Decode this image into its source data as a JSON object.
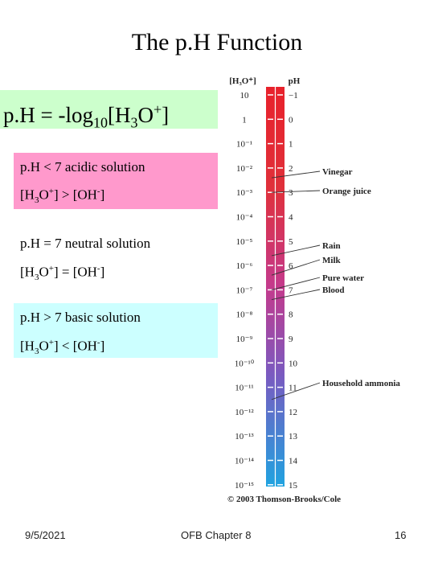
{
  "slide": {
    "title": "The p.H Function",
    "formula": {
      "prefix": "p.H = -log",
      "base": "10",
      "bracket_open": "[H",
      "h_sub": "3",
      "o": "O",
      "charge": "+",
      "bracket_close": "]"
    },
    "acidic": {
      "line1": "p.H < 7   acidic solution",
      "line2_a": "[H",
      "line2_sub": "3",
      "line2_b": "O",
      "line2_sup": "+",
      "line2_c": "] > [OH",
      "line2_sup2": "-",
      "line2_d": "]"
    },
    "neutral": {
      "line1": "p.H = 7   neutral solution",
      "line2_a": "[H",
      "line2_sub": "3",
      "line2_b": "O",
      "line2_sup": "+",
      "line2_c": "] = [OH",
      "line2_sup2": "-",
      "line2_d": "]"
    },
    "basic": {
      "line1": "p.H > 7   basic solution",
      "line2_a": "[H",
      "line2_sub": "3",
      "line2_b": "O",
      "line2_sup": "+",
      "line2_c": "] < [OH",
      "line2_sup2": "-",
      "line2_d": "]"
    },
    "footer": {
      "date": "9/5/2021",
      "center": "OFB Chapter 8",
      "page": "16"
    }
  },
  "scale": {
    "header_conc": "[H₃O⁺]",
    "header_ph": "pH",
    "conc_labels": [
      "10",
      "1",
      "10⁻¹",
      "10⁻²",
      "10⁻³",
      "10⁻⁴",
      "10⁻⁵",
      "10⁻⁶",
      "10⁻⁷",
      "10⁻⁸",
      "10⁻⁹",
      "10⁻¹⁰",
      "10⁻¹¹",
      "10⁻¹²",
      "10⁻¹³",
      "10⁻¹⁴",
      "10⁻¹⁵"
    ],
    "ph_labels": [
      "−1",
      "0",
      "1",
      "2",
      "3",
      "4",
      "5",
      "6",
      "7",
      "8",
      "9",
      "10",
      "11",
      "12",
      "13",
      "14",
      "15"
    ],
    "substances": [
      {
        "name": "Vinegar",
        "ph": 2.4
      },
      {
        "name": "Orange juice",
        "ph": 3.0
      },
      {
        "name": "Rain",
        "ph": 5.6
      },
      {
        "name": "Milk",
        "ph": 6.4
      },
      {
        "name": "Pure water",
        "ph": 7.0
      },
      {
        "name": "Blood",
        "ph": 7.4
      },
      {
        "name": "Household ammonia",
        "ph": 11.5
      }
    ],
    "copyright": "© 2003 Thomson-Brooks/Cole",
    "colors": {
      "acid": "#e8212b",
      "mid": "#c43a8c",
      "base": "#1fa3e0"
    }
  }
}
